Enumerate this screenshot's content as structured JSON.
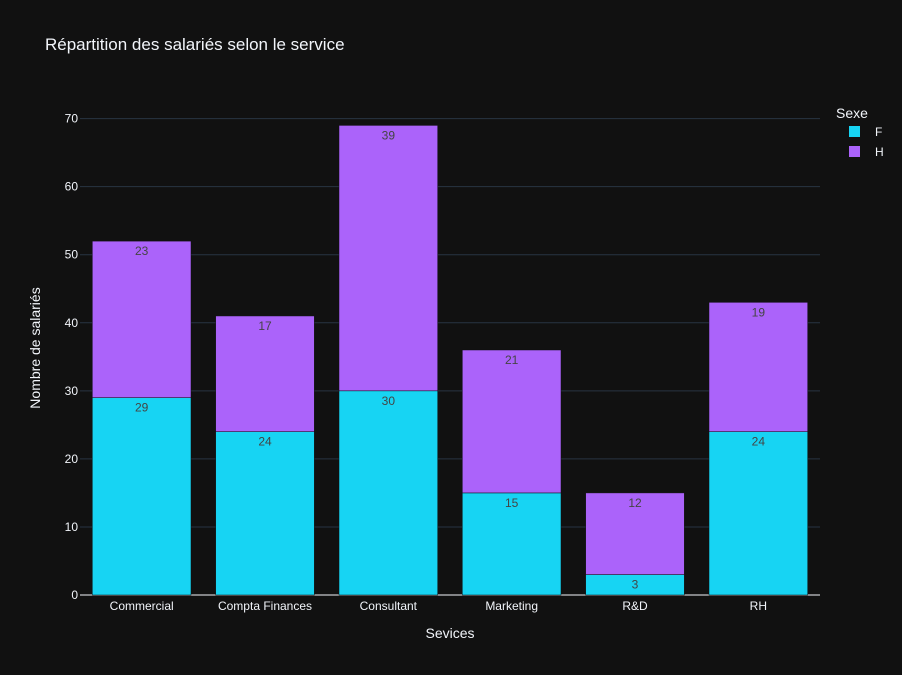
{
  "chart_data": {
    "type": "bar",
    "barmode": "stack",
    "title": "Répartition des salariés selon le service",
    "xlabel": "Sevices",
    "ylabel": "Nombre de salariés",
    "categories": [
      "Commercial",
      "Compta Finances",
      "Consultant",
      "Marketing",
      "R&D",
      "RH"
    ],
    "series": [
      {
        "name": "F",
        "color": "#17d4f3",
        "values": [
          29,
          24,
          30,
          15,
          3,
          24
        ]
      },
      {
        "name": "H",
        "color": "#ab63fa",
        "values": [
          23,
          17,
          39,
          21,
          12,
          19
        ]
      }
    ],
    "ylim": [
      0,
      72
    ],
    "yticks": [
      0,
      10,
      20,
      30,
      40,
      50,
      60,
      70
    ],
    "grid": true,
    "legend": {
      "title": "Sexe",
      "placement": "top-right"
    },
    "colors": {
      "background": "#111111",
      "grid": "#283442",
      "text": "#f2f5fa"
    }
  }
}
